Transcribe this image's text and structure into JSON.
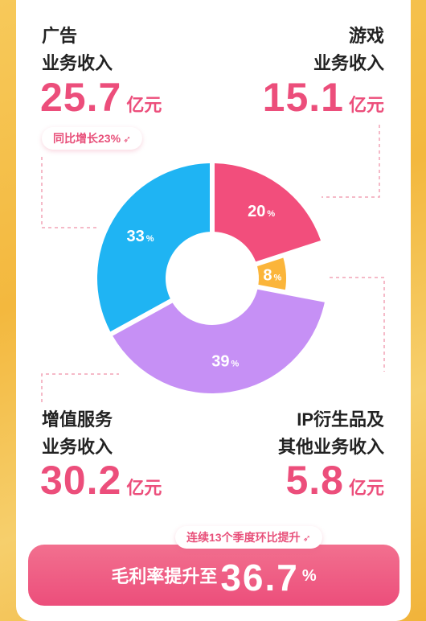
{
  "segments": {
    "ads": {
      "label_line1": "广告",
      "label_line2": "业务收入",
      "amount": "25.7",
      "unit": "亿元",
      "badge": "同比增长23%",
      "badge_arrow": "➶"
    },
    "games": {
      "label_line1": "游戏",
      "label_line2": "业务收入",
      "amount": "15.1",
      "unit": "亿元"
    },
    "vas": {
      "label_line1": "增值服务",
      "label_line2": "业务收入",
      "amount": "30.2",
      "unit": "亿元"
    },
    "ip": {
      "label_line1": "IP衍生品及",
      "label_line2": "其他业务收入",
      "amount": "5.8",
      "unit": "亿元"
    }
  },
  "chart_data": {
    "type": "pie",
    "donut": true,
    "slices": [
      {
        "value": 20,
        "label": "20",
        "color": "#f24e7c"
      },
      {
        "value": 8,
        "label": "8",
        "color": "#fbb53a"
      },
      {
        "value": 39,
        "label": "39",
        "color": "#c690f5"
      },
      {
        "value": 33,
        "label": "33",
        "color": "#1fb4f3"
      }
    ],
    "unit": "%"
  },
  "footer": {
    "badge": "连续13个季度环比提升",
    "badge_arrow": "➶",
    "label": "毛利率提升至",
    "value": "36.7",
    "unit": "%"
  }
}
